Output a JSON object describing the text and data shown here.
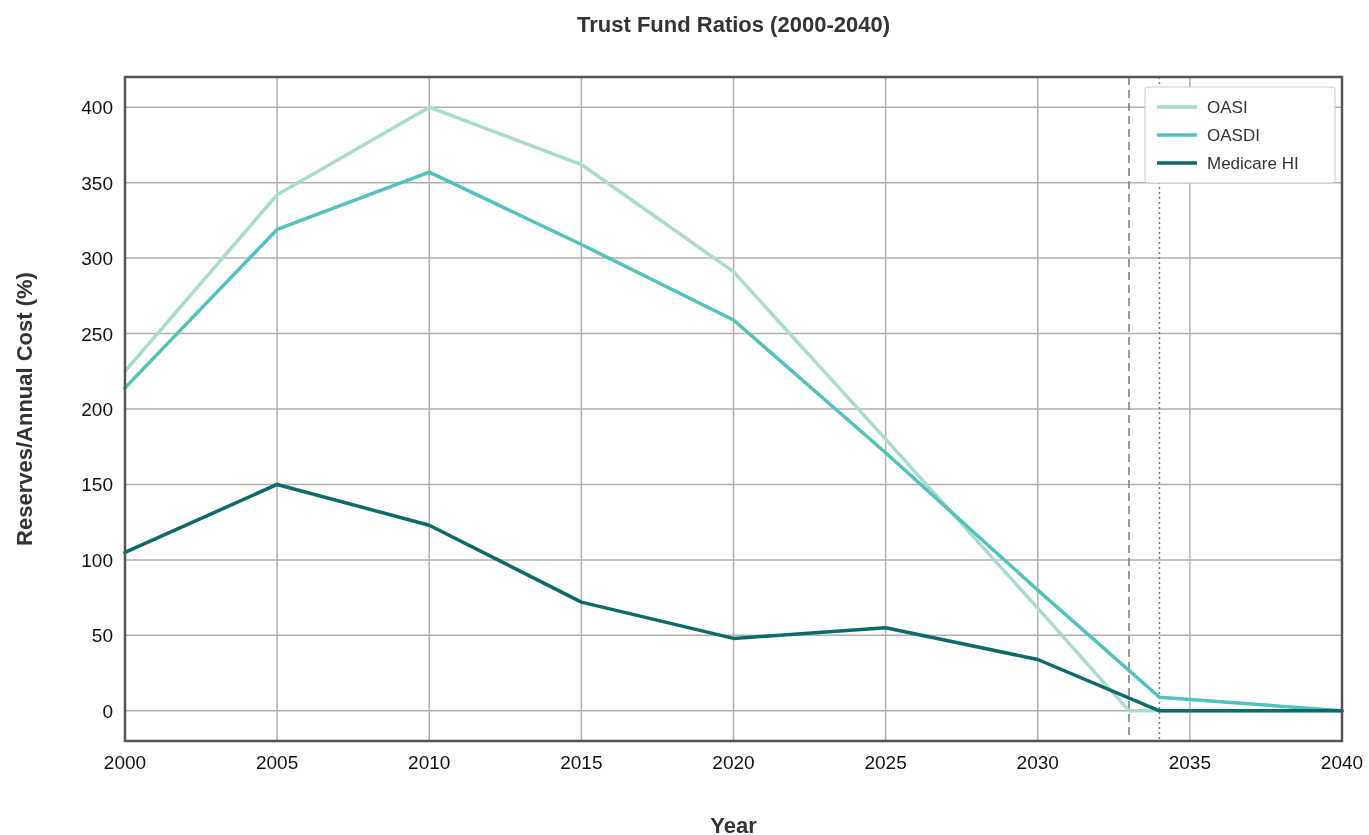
{
  "chart_data": {
    "type": "line",
    "title": "Trust Fund Ratios (2000-2040)",
    "xlabel": "Year",
    "ylabel": "Reserves/Annual Cost (%)",
    "xlim": [
      2000,
      2040
    ],
    "xticks": [
      2000,
      2005,
      2010,
      2015,
      2020,
      2025,
      2030,
      2035,
      2040
    ],
    "ylim": [
      -20,
      420
    ],
    "yticks": [
      0,
      50,
      100,
      150,
      200,
      250,
      300,
      350,
      400
    ],
    "grid": true,
    "legend": "top right",
    "line_style": "solid",
    "series": [
      {
        "name": "OASI",
        "color": "#a8dccf",
        "x": [
          2000,
          2005,
          2010,
          2015,
          2020,
          2025,
          2030,
          2033,
          2034,
          2040
        ],
        "values": [
          225,
          342,
          400,
          362,
          291,
          180,
          68,
          0,
          0,
          0
        ]
      },
      {
        "name": "OASDI",
        "color": "#52c3bc",
        "x": [
          2000,
          2005,
          2010,
          2015,
          2020,
          2025,
          2030,
          2034,
          2040
        ],
        "values": [
          214,
          319,
          357,
          309,
          259,
          171,
          80,
          9,
          0
        ]
      },
      {
        "name": "Medicare HI",
        "color": "#0b6b68",
        "x": [
          2000,
          2005,
          2010,
          2015,
          2020,
          2025,
          2030,
          2034,
          2040
        ],
        "values": [
          105,
          150,
          123,
          72,
          48,
          55,
          34,
          0,
          0
        ]
      }
    ],
    "ref_lines": [
      {
        "axis": "x",
        "value": 2033,
        "color": "#777777",
        "line_style": "dashed"
      },
      {
        "axis": "x",
        "value": 2034,
        "color": "#777777",
        "line_style": "dotted"
      }
    ]
  }
}
